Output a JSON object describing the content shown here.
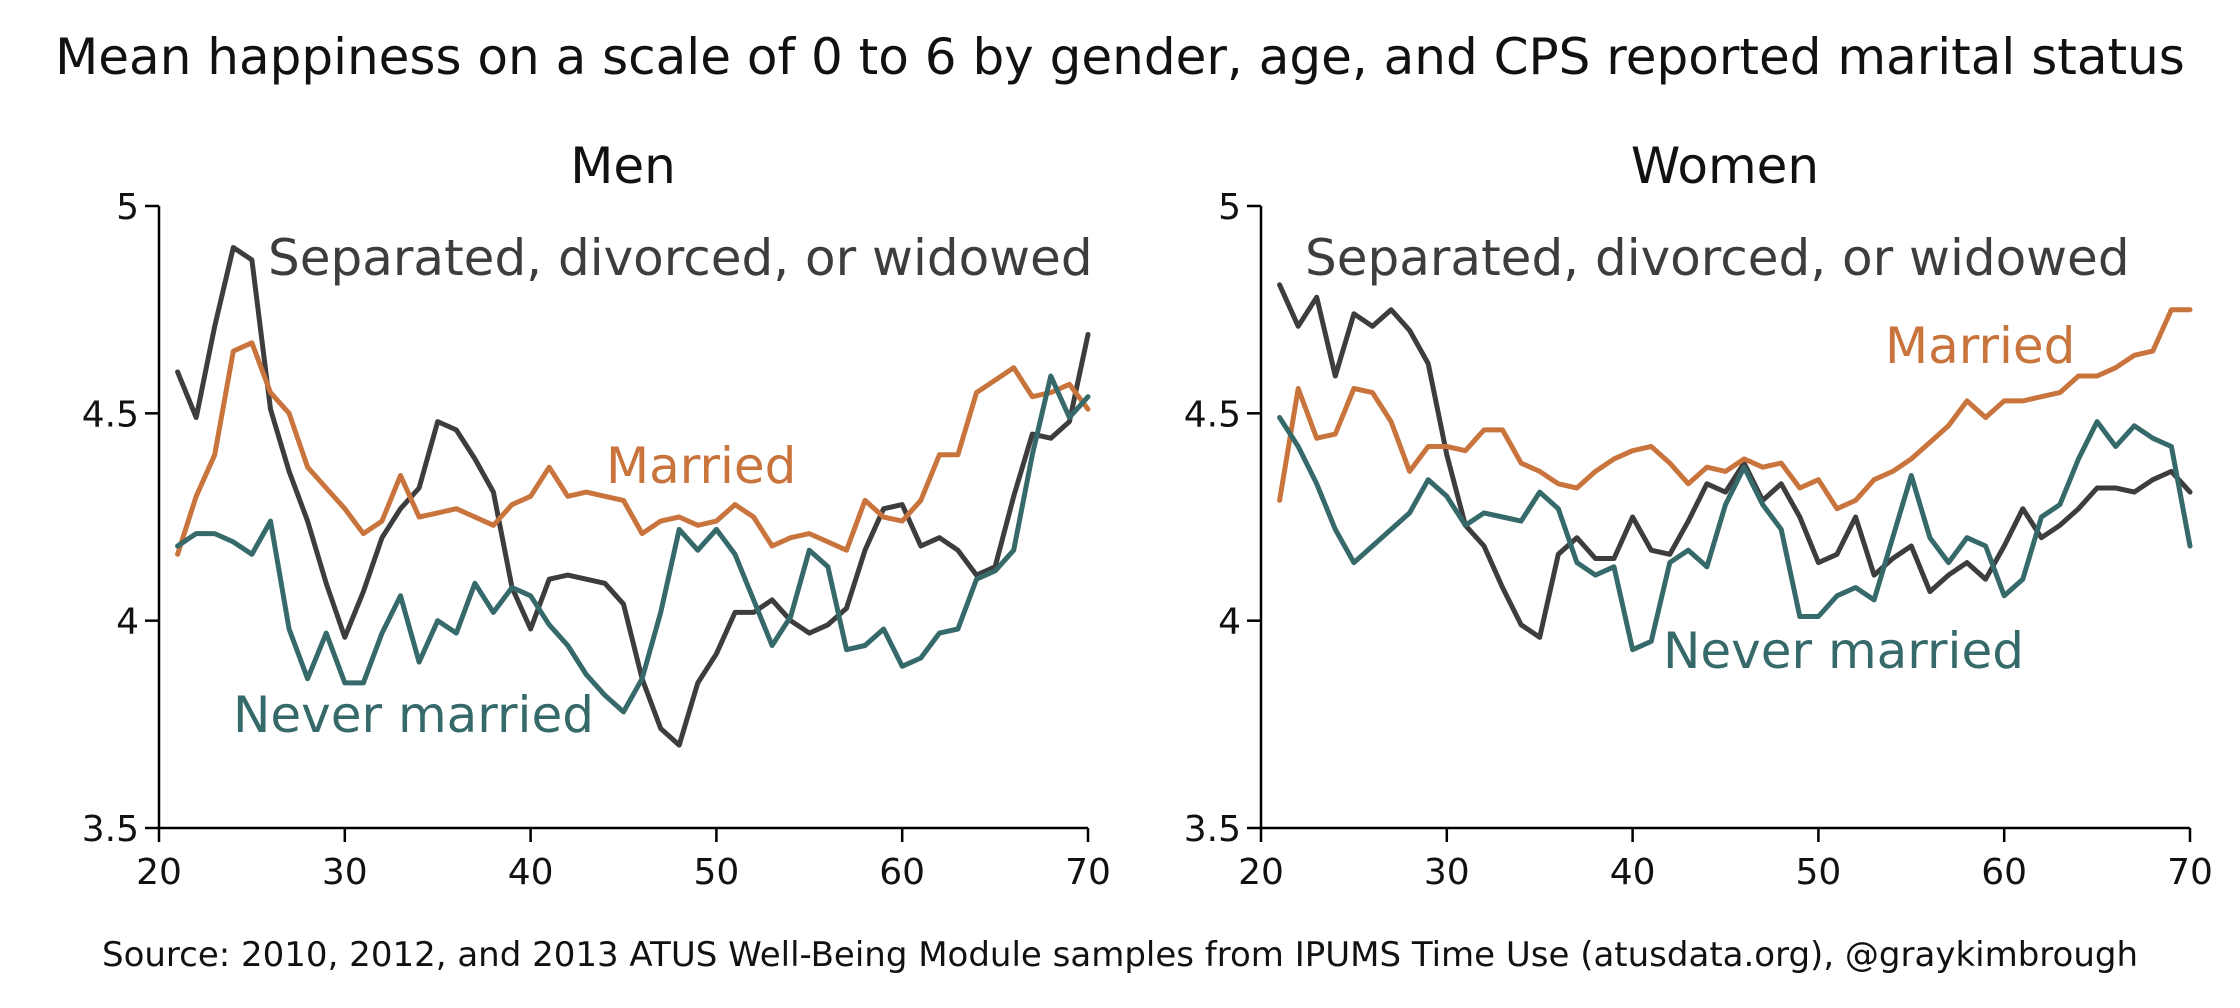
{
  "title": "Mean happiness on a scale of 0 to 6 by gender, age, and CPS reported marital status",
  "source": "Source: 2010, 2012, and 2013 ATUS Well-Being Module samples from IPUMS Time Use (atusdata.org), @graykimbrough",
  "colors": {
    "married": "#c8743c",
    "never": "#36696a",
    "sdw": "#3d3d3d",
    "axis": "#000000"
  },
  "chart_data": [
    {
      "type": "line",
      "title": "Men",
      "xlabel": "",
      "ylabel": "",
      "xlim": [
        20,
        70
      ],
      "ylim": [
        3.5,
        5
      ],
      "xticks": [
        20,
        30,
        40,
        50,
        60,
        70
      ],
      "yticks": [
        3.5,
        4,
        4.5,
        5
      ],
      "ytick_labels": [
        "3.5",
        "4",
        "4.5",
        "5"
      ],
      "grid": false,
      "x": [
        21,
        22,
        23,
        24,
        25,
        26,
        27,
        28,
        29,
        30,
        31,
        32,
        33,
        34,
        35,
        36,
        37,
        38,
        39,
        40,
        41,
        42,
        43,
        44,
        45,
        46,
        47,
        48,
        49,
        50,
        51,
        52,
        53,
        54,
        55,
        56,
        57,
        58,
        59,
        60,
        61,
        62,
        63,
        64,
        65,
        66,
        67,
        68,
        69,
        70
      ],
      "series": [
        {
          "name": "Separated, divorced, or widowed",
          "color_key": "sdw",
          "values": [
            4.6,
            4.49,
            4.71,
            4.9,
            4.87,
            4.51,
            4.36,
            4.24,
            4.09,
            3.96,
            4.07,
            4.2,
            4.27,
            4.32,
            4.48,
            4.46,
            4.39,
            4.31,
            4.08,
            3.98,
            4.1,
            4.11,
            4.1,
            4.09,
            4.04,
            3.86,
            3.74,
            3.7,
            3.85,
            3.92,
            4.02,
            4.02,
            4.05,
            4.0,
            3.97,
            3.99,
            4.03,
            4.17,
            4.27,
            4.28,
            4.18,
            4.2,
            4.17,
            4.11,
            4.13,
            4.3,
            4.45,
            4.44,
            4.48,
            4.69
          ]
        },
        {
          "name": "Married",
          "color_key": "married",
          "values": [
            4.16,
            4.3,
            4.4,
            4.65,
            4.67,
            4.55,
            4.5,
            4.37,
            4.32,
            4.27,
            4.21,
            4.24,
            4.35,
            4.25,
            4.26,
            4.27,
            4.25,
            4.23,
            4.28,
            4.3,
            4.37,
            4.3,
            4.31,
            4.3,
            4.29,
            4.21,
            4.24,
            4.25,
            4.23,
            4.24,
            4.28,
            4.25,
            4.18,
            4.2,
            4.21,
            4.19,
            4.17,
            4.29,
            4.25,
            4.24,
            4.29,
            4.4,
            4.4,
            4.55,
            4.58,
            4.61,
            4.54,
            4.55,
            4.57,
            4.51
          ]
        },
        {
          "name": "Never married",
          "color_key": "never",
          "values": [
            4.18,
            4.21,
            4.21,
            4.19,
            4.16,
            4.24,
            3.98,
            3.86,
            3.97,
            3.85,
            3.85,
            3.97,
            4.06,
            3.9,
            4.0,
            3.97,
            4.09,
            4.02,
            4.08,
            4.06,
            3.99,
            3.94,
            3.87,
            3.82,
            3.78,
            3.86,
            4.02,
            4.22,
            4.17,
            4.22,
            4.16,
            4.05,
            3.94,
            4.01,
            4.17,
            4.13,
            3.93,
            3.94,
            3.98,
            3.89,
            3.91,
            3.97,
            3.98,
            4.1,
            4.12,
            4.17,
            4.4,
            4.59,
            4.49,
            4.54
          ]
        }
      ],
      "annotations": [
        "Separated, divorced, or widowed",
        "Married",
        "Never married"
      ]
    },
    {
      "type": "line",
      "title": "Women",
      "xlabel": "",
      "ylabel": "",
      "xlim": [
        20,
        70
      ],
      "ylim": [
        3.5,
        5
      ],
      "xticks": [
        20,
        30,
        40,
        50,
        60,
        70
      ],
      "yticks": [
        3.5,
        4,
        4.5,
        5
      ],
      "ytick_labels": [
        "3.5",
        "4",
        "4.5",
        "5"
      ],
      "grid": false,
      "x": [
        21,
        22,
        23,
        24,
        25,
        26,
        27,
        28,
        29,
        30,
        31,
        32,
        33,
        34,
        35,
        36,
        37,
        38,
        39,
        40,
        41,
        42,
        43,
        44,
        45,
        46,
        47,
        48,
        49,
        50,
        51,
        52,
        53,
        54,
        55,
        56,
        57,
        58,
        59,
        60,
        61,
        62,
        63,
        64,
        65,
        66,
        67,
        68,
        69,
        70
      ],
      "series": [
        {
          "name": "Separated, divorced, or widowed",
          "color_key": "sdw",
          "values": [
            4.81,
            4.71,
            4.78,
            4.59,
            4.74,
            4.71,
            4.75,
            4.7,
            4.62,
            4.4,
            4.23,
            4.18,
            4.08,
            3.99,
            3.96,
            4.16,
            4.2,
            4.15,
            4.15,
            4.25,
            4.17,
            4.16,
            4.24,
            4.33,
            4.31,
            4.38,
            4.29,
            4.33,
            4.25,
            4.14,
            4.16,
            4.25,
            4.11,
            4.15,
            4.18,
            4.07,
            4.11,
            4.14,
            4.1,
            4.18,
            4.27,
            4.2,
            4.23,
            4.27,
            4.32,
            4.32,
            4.31,
            4.34,
            4.36,
            4.31
          ]
        },
        {
          "name": "Married",
          "color_key": "married",
          "values": [
            4.29,
            4.56,
            4.44,
            4.45,
            4.56,
            4.55,
            4.48,
            4.36,
            4.42,
            4.42,
            4.41,
            4.46,
            4.46,
            4.38,
            4.36,
            4.33,
            4.32,
            4.36,
            4.39,
            4.41,
            4.42,
            4.38,
            4.33,
            4.37,
            4.36,
            4.39,
            4.37,
            4.38,
            4.32,
            4.34,
            4.27,
            4.29,
            4.34,
            4.36,
            4.39,
            4.43,
            4.47,
            4.53,
            4.49,
            4.53,
            4.53,
            4.54,
            4.55,
            4.59,
            4.59,
            4.61,
            4.64,
            4.65,
            4.75,
            4.75
          ]
        },
        {
          "name": "Never married",
          "color_key": "never",
          "values": [
            4.49,
            4.42,
            4.33,
            4.22,
            4.14,
            4.18,
            4.22,
            4.26,
            4.34,
            4.3,
            4.23,
            4.26,
            4.25,
            4.24,
            4.31,
            4.27,
            4.14,
            4.11,
            4.13,
            3.93,
            3.95,
            4.14,
            4.17,
            4.13,
            4.28,
            4.37,
            4.28,
            4.22,
            4.01,
            4.01,
            4.06,
            4.08,
            4.05,
            4.2,
            4.35,
            4.2,
            4.14,
            4.2,
            4.18,
            4.06,
            4.1,
            4.25,
            4.28,
            4.39,
            4.48,
            4.42,
            4.47,
            4.44,
            4.42,
            4.18
          ]
        }
      ],
      "annotations": [
        "Separated, divorced, or widowed",
        "Married",
        "Never married"
      ]
    }
  ]
}
